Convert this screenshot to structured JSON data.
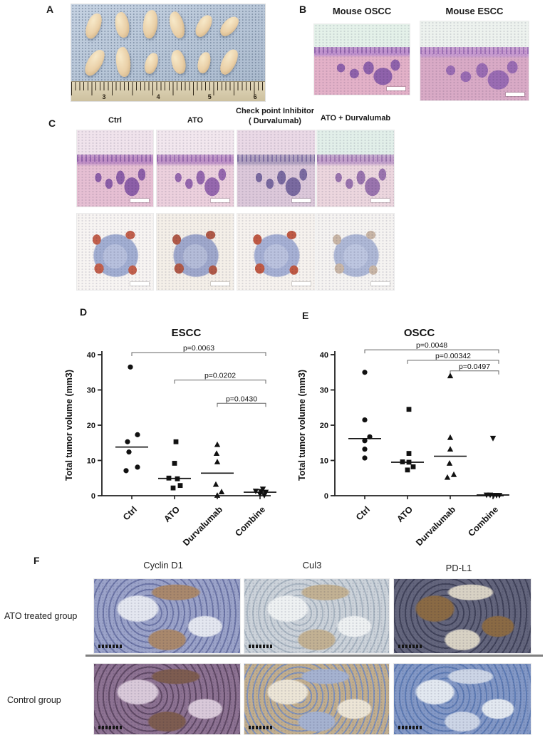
{
  "panels": {
    "A": {
      "label": "A",
      "ruler": [
        "3",
        "4",
        "5",
        "6"
      ]
    },
    "B": {
      "label": "B",
      "images": [
        {
          "title": "Mouse OSCC"
        },
        {
          "title": "Mouse ESCC"
        }
      ]
    },
    "C": {
      "label": "C",
      "headers": [
        {
          "lines": [
            "Ctrl"
          ]
        },
        {
          "lines": [
            "ATO"
          ]
        },
        {
          "lines": [
            "Check  point Inhibitor",
            "(  Durvalumab)"
          ]
        },
        {
          "lines": [
            "ATO +  Durvalumab"
          ]
        }
      ]
    },
    "D": {
      "label": "D"
    },
    "E": {
      "label": "E"
    },
    "F": {
      "label": "F",
      "columns": [
        "Cyclin D1",
        "Cul3",
        "PD-L1"
      ],
      "rows": [
        "ATO treated group",
        "Control group"
      ]
    }
  },
  "chart_data": [
    {
      "type": "scatter",
      "title": "ESCC",
      "xlabel": "",
      "ylabel": "Total tumor volume (mm3)",
      "ylim": [
        0,
        40
      ],
      "yticks": [
        0,
        10,
        20,
        30,
        40
      ],
      "grid": false,
      "categories": [
        "Ctrl",
        "ATO",
        "Durvalumab",
        "Combine"
      ],
      "groups": [
        {
          "name": "Ctrl",
          "marker": "circle",
          "median": 13.8,
          "points": [
            {
              "v": 36.5,
              "dx": -2
            },
            {
              "v": 17.3,
              "dx": 8
            },
            {
              "v": 15.3,
              "dx": -6
            },
            {
              "v": 12.4,
              "dx": -4
            },
            {
              "v": 8.1,
              "dx": 8
            },
            {
              "v": 7.1,
              "dx": -8
            }
          ]
        },
        {
          "name": "ATO",
          "marker": "square",
          "median": 4.9,
          "points": [
            {
              "v": 15.3,
              "dx": 2
            },
            {
              "v": 9.2,
              "dx": 0
            },
            {
              "v": 5.0,
              "dx": -8
            },
            {
              "v": 4.8,
              "dx": 4
            },
            {
              "v": 2.9,
              "dx": 8
            },
            {
              "v": 2.2,
              "dx": -2
            }
          ]
        },
        {
          "name": "Durvalumab",
          "marker": "triangle-up",
          "median": 6.4,
          "points": [
            {
              "v": 14.5,
              "dx": 0
            },
            {
              "v": 12.0,
              "dx": -1
            },
            {
              "v": 9.6,
              "dx": 0
            },
            {
              "v": 3.2,
              "dx": -2
            },
            {
              "v": 1.1,
              "dx": 6
            },
            {
              "v": 0.1,
              "dx": 0
            }
          ]
        },
        {
          "name": "Combine",
          "marker": "triangle-down",
          "median": 1.0,
          "points": [
            {
              "v": 1.9,
              "dx": 4
            },
            {
              "v": 1.3,
              "dx": -6
            },
            {
              "v": 1.2,
              "dx": 1
            },
            {
              "v": 1.0,
              "dx": 8
            },
            {
              "v": 0.4,
              "dx": 0
            },
            {
              "v": 0.1,
              "dx": 6
            }
          ]
        }
      ],
      "comparisons": [
        {
          "from": 0,
          "to": 3,
          "label": "p=0.0063",
          "y": 40.6
        },
        {
          "from": 1,
          "to": 3,
          "label": "p=0.0202",
          "y": 32.8
        },
        {
          "from": 2,
          "to": 3,
          "label": "p=0.0430",
          "y": 26.2
        }
      ]
    },
    {
      "type": "scatter",
      "title": "OSCC",
      "xlabel": "",
      "ylabel": "Total tumor volume (mm3)",
      "ylim": [
        0,
        40
      ],
      "yticks": [
        0,
        10,
        20,
        30,
        40
      ],
      "grid": false,
      "categories": [
        "Ctrl",
        "ATO",
        "Durvalumab",
        "Combine"
      ],
      "groups": [
        {
          "name": "Ctrl",
          "marker": "circle",
          "median": 16.2,
          "points": [
            {
              "v": 35.0,
              "dx": 0
            },
            {
              "v": 21.5,
              "dx": 0
            },
            {
              "v": 16.7,
              "dx": 7
            },
            {
              "v": 15.6,
              "dx": 0
            },
            {
              "v": 13.2,
              "dx": 0
            },
            {
              "v": 10.7,
              "dx": 0
            }
          ]
        },
        {
          "name": "ATO",
          "marker": "square",
          "median": 9.5,
          "points": [
            {
              "v": 24.5,
              "dx": 2
            },
            {
              "v": 12.0,
              "dx": 2
            },
            {
              "v": 9.6,
              "dx": -7
            },
            {
              "v": 9.5,
              "dx": 2
            },
            {
              "v": 8.2,
              "dx": 8
            },
            {
              "v": 7.3,
              "dx": 0
            }
          ]
        },
        {
          "name": "Durvalumab",
          "marker": "triangle-up",
          "median": 11.2,
          "points": [
            {
              "v": 34.0,
              "dx": 0
            },
            {
              "v": 16.5,
              "dx": 0
            },
            {
              "v": 13.2,
              "dx": 0
            },
            {
              "v": 9.2,
              "dx": -1
            },
            {
              "v": 6.0,
              "dx": 5
            },
            {
              "v": 5.2,
              "dx": -4
            }
          ]
        },
        {
          "name": "Combine",
          "marker": "triangle-down",
          "median": 0.2,
          "points": [
            {
              "v": 16.3,
              "dx": 0
            },
            {
              "v": 0.2,
              "dx": -9
            },
            {
              "v": 0.2,
              "dx": -4
            },
            {
              "v": 0.1,
              "dx": 1
            },
            {
              "v": 0.1,
              "dx": 5
            },
            {
              "v": 0.1,
              "dx": 9
            }
          ]
        }
      ],
      "comparisons": [
        {
          "from": 0,
          "to": 3,
          "label": "p=0.0048",
          "y": 41.4
        },
        {
          "from": 1,
          "to": 3,
          "label": "p=0.00342",
          "y": 38.4
        },
        {
          "from": 2,
          "to": 3,
          "label": "p=0.0497",
          "y": 35.4
        }
      ]
    }
  ],
  "palettes": {
    "photo": [
      "#b2c3d8",
      "#ead0a8",
      "#cdc1a0",
      "#51647e"
    ],
    "b_oscc": [
      "#e4f1e9",
      "#e3b1c8",
      "#8f62ab",
      "#c193cf"
    ],
    "b_escc": [
      "#edf2ee",
      "#d9aac6",
      "#9a6cb3",
      "#c79ad0"
    ],
    "c1_ctrl": [
      "#f0e3ec",
      "#e6bfd3",
      "#8d5fa8",
      "#c08fc6"
    ],
    "c1_ato": [
      "#f2e7ee",
      "#ecd0dd",
      "#9668ae",
      "#c094c8"
    ],
    "c1_ci": [
      "#ead9e6",
      "#dcc8da",
      "#7a6aa0",
      "#b0a0c0"
    ],
    "c1_combo": [
      "#e2efe9",
      "#ecd6de",
      "#9a74ae",
      "#c4a2cc"
    ],
    "c2_ctrl": [
      "#f7f4f2",
      "#a2aed2",
      "#c2604c",
      "#b7c0dd"
    ],
    "c2_ato": [
      "#f4efe8",
      "#9fa8cc",
      "#b05a48",
      "#b4bcd8"
    ],
    "c2_ci": [
      "#f6f2ee",
      "#a6b0d4",
      "#c05a44",
      "#bac2de"
    ],
    "c2_combo": [
      "#f5f3f1",
      "#aeb8d6",
      "#c9b6a6",
      "#bdc6e0"
    ],
    "f1_cyclind1": [
      "#9ba3c9",
      "#6e77a8",
      "#e4e7f0",
      "#a9886c"
    ],
    "f1_cul3": [
      "#ccd3da",
      "#aab6c2",
      "#eef1f2",
      "#c2b193"
    ],
    "f1_pdl1": [
      "#63657c",
      "#41435a",
      "#8a6a44",
      "#d8d2c4"
    ],
    "f2_cyclind1": [
      "#8d7292",
      "#614a66",
      "#d9c9d9",
      "#7d5c50"
    ],
    "f2_cul3": [
      "#c2ae8e",
      "#8092ba",
      "#ece5d6",
      "#a5b2d0"
    ],
    "f2_pdl1": [
      "#8398c6",
      "#5f7cb4",
      "#e2e8f0",
      "#ccd5e6"
    ]
  },
  "marker_color": "#111111"
}
